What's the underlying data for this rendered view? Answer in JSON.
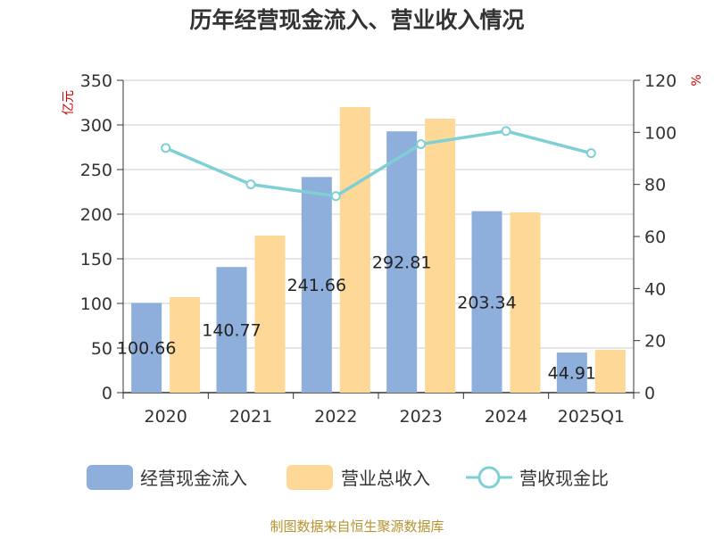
{
  "title": "历年经营现金流入、营业收入情况",
  "source": "制图数据来自恒生聚源数据库",
  "colors": {
    "cash_inflow": "#8eaedb",
    "revenue": "#fdd897",
    "ratio": "#7fd0d4"
  },
  "chart_data": {
    "type": "bar",
    "categories": [
      "2020",
      "2021",
      "2022",
      "2023",
      "2024",
      "2025Q1"
    ],
    "y_left": {
      "unit": "亿元",
      "min": 0,
      "max": 350,
      "ticks": [
        "0",
        "50",
        "100",
        "150",
        "200",
        "250",
        "300",
        "350"
      ]
    },
    "y_right": {
      "unit": "%",
      "min": 0,
      "max": 120,
      "ticks": [
        "0",
        "20",
        "40",
        "60",
        "80",
        "100",
        "120"
      ]
    },
    "grid": true,
    "legend_position": "bottom",
    "series": [
      {
        "name": "经营现金流入",
        "type": "bar",
        "axis": "left",
        "values": [
          100.66,
          140.77,
          241.66,
          292.81,
          203.34,
          44.91
        ]
      },
      {
        "name": "营业总收入",
        "type": "bar",
        "axis": "left",
        "values": [
          107,
          176,
          320,
          307,
          202,
          48
        ]
      },
      {
        "name": "营收现金比",
        "type": "line",
        "axis": "right",
        "values": [
          94,
          80,
          75.5,
          95.5,
          100.5,
          92
        ]
      }
    ],
    "data_labels": [
      "100.66",
      "140.77",
      "241.66",
      "292.81",
      "203.34",
      "44.91"
    ]
  }
}
